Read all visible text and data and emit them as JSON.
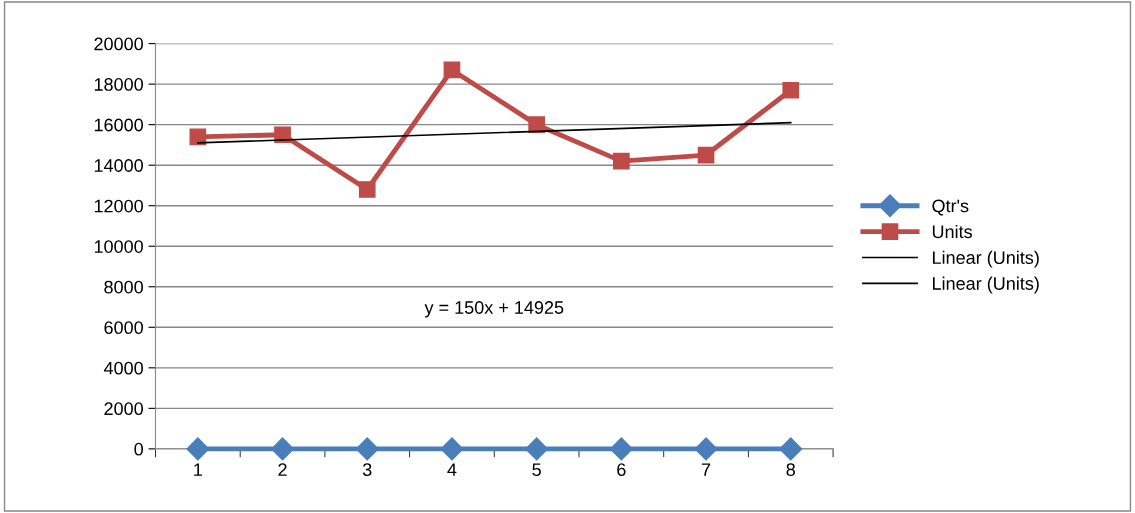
{
  "chart_data": {
    "type": "line",
    "categories": [
      "1",
      "2",
      "3",
      "4",
      "5",
      "6",
      "7",
      "8"
    ],
    "series": [
      {
        "name": "Qtr's",
        "color": "#4a7ebb",
        "marker": "diamond",
        "values": [
          0,
          0,
          0,
          0,
          0,
          0,
          0,
          0
        ]
      },
      {
        "name": "Units",
        "color": "#be4b48",
        "marker": "square",
        "values": [
          15400,
          15500,
          12800,
          18700,
          16000,
          14200,
          14500,
          17700
        ]
      },
      {
        "name": "Linear (Units)",
        "color": "#000000",
        "marker": "none",
        "x": [
          "1",
          "8"
        ],
        "values": [
          15100,
          16100
        ]
      },
      {
        "name": "Linear (Units)",
        "color": "#000000",
        "marker": "none",
        "values": [
          null,
          null,
          null,
          null,
          null,
          null,
          null,
          null
        ]
      }
    ],
    "ylim": [
      0,
      20000
    ],
    "yticks": [
      0,
      2000,
      4000,
      6000,
      8000,
      10000,
      12000,
      14000,
      16000,
      18000,
      20000
    ],
    "grid": "y",
    "legend": "right",
    "line_style": "solid",
    "annotations": [
      "y = 150x + 14925"
    ]
  }
}
